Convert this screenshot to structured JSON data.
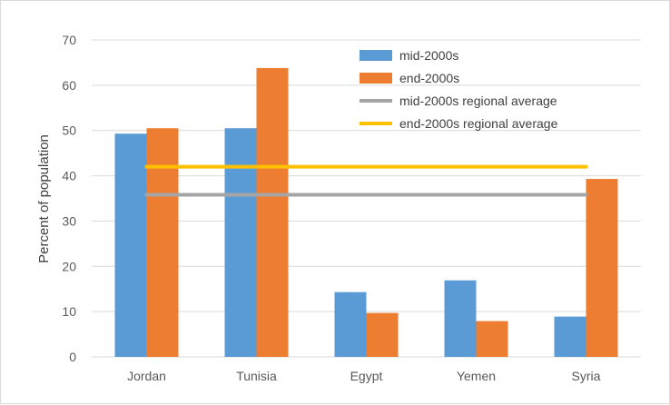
{
  "chart_data": {
    "type": "bar",
    "title": "",
    "xlabel": "",
    "ylabel": "Percent of population",
    "ylim": [
      0,
      70
    ],
    "yticks": [
      0,
      10,
      20,
      30,
      40,
      50,
      60,
      70
    ],
    "categories": [
      "Jordan",
      "Tunisia",
      "Egypt",
      "Yemen",
      "Syria"
    ],
    "series": [
      {
        "name": "mid-2000s",
        "type": "bar",
        "color": "#5b9bd5",
        "values": [
          49.3,
          50.5,
          14.3,
          16.9,
          8.9
        ]
      },
      {
        "name": "end-2000s",
        "type": "bar",
        "color": "#ed7d31",
        "values": [
          50.5,
          63.8,
          9.7,
          7.9,
          39.3
        ]
      }
    ],
    "reference_lines": [
      {
        "name": "mid-2000s regional average",
        "type": "line",
        "color": "#a5a5a5",
        "value": 35.8
      },
      {
        "name": "end-2000s regional average",
        "type": "line",
        "color": "#ffc000",
        "value": 42.0
      }
    ],
    "grid": true,
    "legend_position": "top-right"
  }
}
